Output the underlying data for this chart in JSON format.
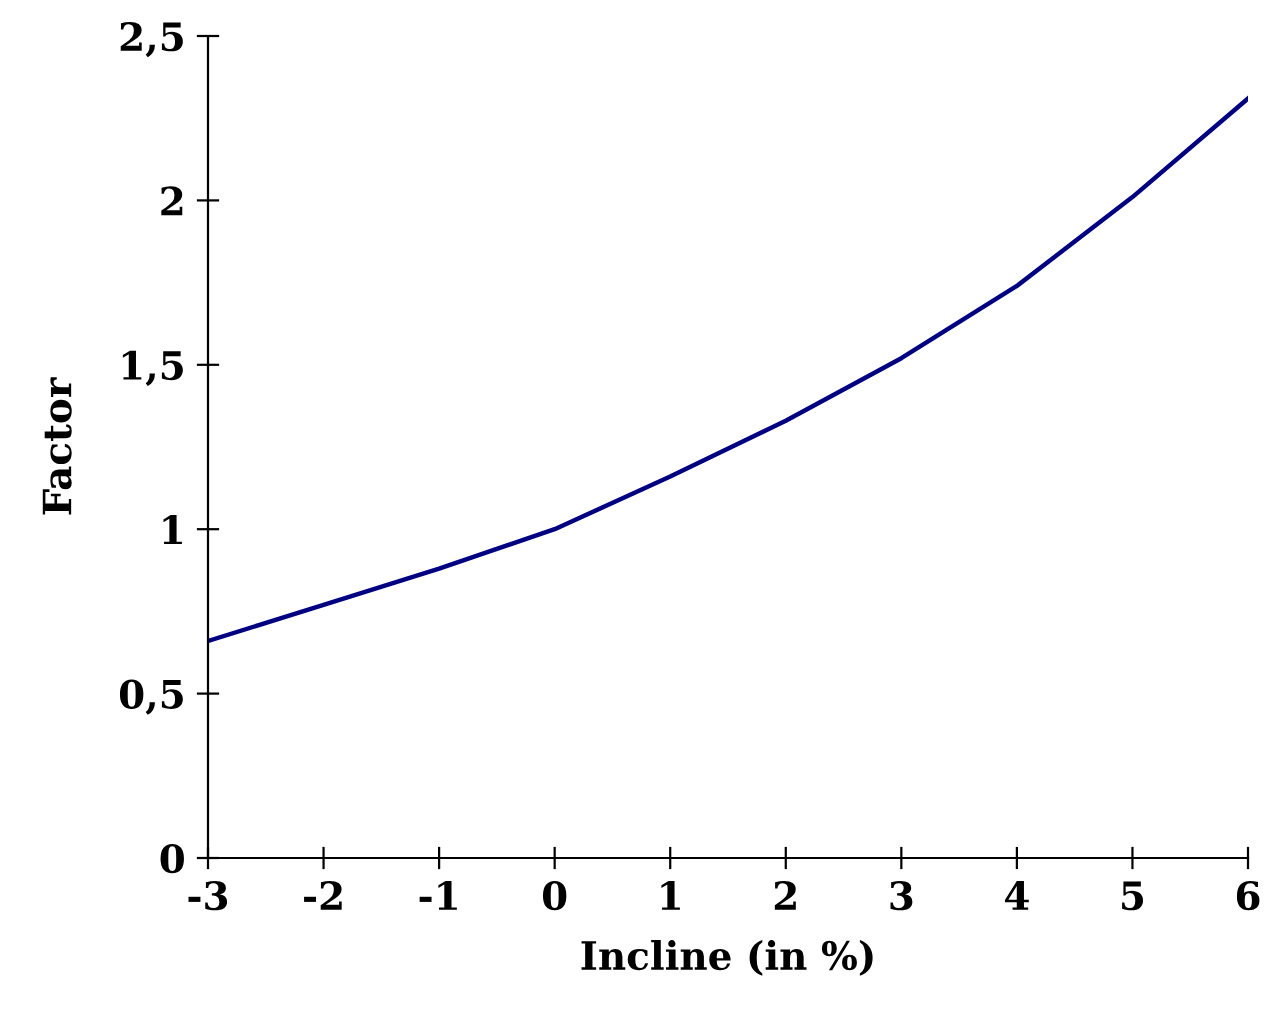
{
  "chart_data": {
    "type": "line",
    "xlabel": "Incline (in %)",
    "ylabel": "Factor",
    "x": [
      -3,
      -2,
      -1,
      0,
      1,
      2,
      3,
      4,
      5,
      6
    ],
    "series": [
      {
        "color": "#000080",
        "values": [
          0.66,
          0.77,
          0.88,
          1.0,
          1.16,
          1.33,
          1.52,
          1.74,
          2.01,
          2.31
        ]
      }
    ],
    "xlim": [
      -3,
      6
    ],
    "xticks": [
      -3,
      -2,
      -1,
      0,
      1,
      2,
      3,
      4,
      5,
      6
    ],
    "ylim": [
      0,
      2.5
    ],
    "yticks": [
      {
        "value": 0,
        "label": "0"
      },
      {
        "value": 0.5,
        "label": "0,5"
      },
      {
        "value": 1,
        "label": "1"
      },
      {
        "value": 1.5,
        "label": "1,5"
      },
      {
        "value": 2,
        "label": "2"
      },
      {
        "value": 2.5,
        "label": "2,5"
      }
    ],
    "grid": false,
    "legend": false,
    "marker": "none",
    "line_style": "solid"
  }
}
